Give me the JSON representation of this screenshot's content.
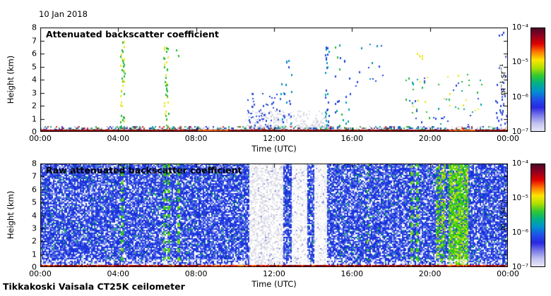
{
  "meta": {
    "date_label": "10 Jan 2018",
    "footer": "Tikkakoski Vaisala CT25K ceilometer"
  },
  "axes": {
    "x_label": "Time (UTC)",
    "y_label": "Height (km)",
    "x_tick_labels": [
      "00:00",
      "04:00",
      "08:00",
      "12:00",
      "16:00",
      "20:00",
      "00:00"
    ],
    "x_tick_hours": [
      0,
      4,
      8,
      12,
      16,
      20,
      24
    ],
    "y_tick_labels": [
      "8",
      "7",
      "6",
      "5",
      "4",
      "3",
      "2",
      "1",
      "0"
    ],
    "y_tick_km": [
      0,
      1,
      2,
      3,
      4,
      5,
      6,
      7,
      8
    ]
  },
  "colorbar": {
    "tick_labels": [
      "10⁻⁴",
      "10⁻⁵",
      "10⁻⁶",
      "10⁻⁷"
    ],
    "units": "m⁻¹ sr⁻¹",
    "scale_range": [
      "1e-7",
      "1e-4"
    ],
    "gradient": [
      "#4c0828",
      "#92001e",
      "#e00000",
      "#ff7800",
      "#ffe400",
      "#b0e000",
      "#30c830",
      "#00b088",
      "#0090d0",
      "#2050e8",
      "#2828e0",
      "#7878e8",
      "#c0c0f0",
      "#e8e8f8"
    ]
  },
  "chart_data": [
    {
      "type": "heatmap",
      "panel": "top",
      "title": "Attenuated backscatter coefficient",
      "xlabel": "Time (UTC)",
      "ylabel": "Height (km)",
      "x_range_hours": [
        0,
        24
      ],
      "y_range_km": [
        0,
        8
      ],
      "colorbar_range": [
        "1e-7",
        "1e-4"
      ],
      "background": "#ffffff",
      "surface_layer": {
        "time_hours": [
          0,
          24
        ],
        "height_km": [
          0,
          0.3
        ],
        "description": "continuous multicolour boundary-layer echo with dark red base line",
        "base_color": "#8c0000",
        "speck_colors": [
          "#2233cc",
          "#22a844",
          "#b8b8cc",
          "#cc2222",
          "#00a0a0",
          "#dcdce8"
        ],
        "orange_patch_hours": [
          [
            8.0,
            9.6
          ],
          [
            20.9,
            22.3
          ]
        ]
      },
      "cloud_obscured": {
        "time_hours": [
          10.5,
          14.7
        ],
        "height_km": [
          0,
          1.7
        ],
        "color": "#dfdfe9",
        "description": "light gray speckle (obscured/precip) with embedded blue dots"
      },
      "precip_streaks": [
        {
          "time_hours": [
            4.1,
            4.3
          ],
          "height_km": [
            0,
            7.0
          ],
          "colors": [
            "#22b830",
            "#e8e820"
          ],
          "density": 0.5
        },
        {
          "time_hours": [
            6.3,
            6.55
          ],
          "height_km": [
            0,
            6.7
          ],
          "colors": [
            "#22b830",
            "#e8e820"
          ],
          "density": 0.5
        },
        {
          "time_hours": [
            6.95,
            7.1
          ],
          "height_km": [
            5.8,
            6.5
          ],
          "colors": [
            "#22b830",
            "#e8e820"
          ],
          "density": 0.5
        },
        {
          "time_hours": [
            12.3,
            12.9
          ],
          "height_km": [
            0.5,
            5.5
          ],
          "colors": [
            "#2244dd",
            "#0090c0"
          ],
          "density": 0.35
        },
        {
          "time_hours": [
            14.6,
            14.8
          ],
          "height_km": [
            0,
            6.6
          ],
          "colors": [
            "#2244dd",
            "#00a0b0"
          ],
          "density": 0.5
        },
        {
          "time_hours": [
            15.0,
            15.9
          ],
          "height_km": [
            0,
            7.2
          ],
          "colors": [
            "#2244dd",
            "#00a0b0",
            "#22b830"
          ],
          "density": 0.45
        },
        {
          "time_hours": [
            23.3,
            24.0
          ],
          "height_km": [
            0,
            2.8
          ],
          "colors": [
            "#2244dd",
            "#5566e0"
          ],
          "density": 0.7
        },
        {
          "time_hours": [
            23.4,
            24.0
          ],
          "height_km": [
            2.8,
            7.7
          ],
          "colors": [
            "#2244dd",
            "#5566e0"
          ],
          "density": 0.25
        }
      ],
      "scattered_dots": [
        {
          "time_hours": [
            16.1,
            17.6
          ],
          "height_km": [
            3.5,
            7.0
          ],
          "colors": [
            "#0090c0",
            "#2244dd"
          ],
          "count": 14
        },
        {
          "time_hours": [
            18.7,
            22.7
          ],
          "height_km": [
            0.5,
            4.6
          ],
          "colors": [
            "#e8e820",
            "#22b830",
            "#00a0a0",
            "#2244dd"
          ],
          "count": 65
        },
        {
          "time_hours": [
            19.3,
            19.6
          ],
          "height_km": [
            5.4,
            6.4
          ],
          "colors": [
            "#e8e820",
            "#22b830"
          ],
          "count": 5
        },
        {
          "time_hours": [
            10.6,
            12.3
          ],
          "height_km": [
            0.2,
            3.0
          ],
          "colors": [
            "#2244dd",
            "#3050d8"
          ],
          "count": 60
        }
      ]
    },
    {
      "type": "heatmap",
      "panel": "bottom",
      "title": "Raw attenuated backscatter coefficient",
      "xlabel": "Time (UTC)",
      "ylabel": "Height (km)",
      "x_range_hours": [
        0,
        24
      ],
      "y_range_km": [
        0,
        8
      ],
      "colorbar_range": [
        "1e-7",
        "1e-4"
      ],
      "noise_background": {
        "description": "dense blue instrument-noise speckle over full panel",
        "colors": [
          "#1830d8",
          "#2a46e2",
          "#6078ea",
          "#a8b0f2",
          "#ffffff",
          "#18b060"
        ]
      },
      "low_level_pale_band": {
        "height_km": [
          0.18,
          0.7
        ],
        "description": "paler white speckle just above surface"
      },
      "surface_line": {
        "height_km": [
          0,
          0.18
        ],
        "colors": [
          "#a00000",
          "#d40000",
          "#ff5800"
        ],
        "bottom_line_color": "#500000",
        "orange_patch_hours": [
          [
            8.0,
            11.0
          ],
          [
            20.9,
            22.3
          ]
        ]
      },
      "gray_bands": [
        {
          "time_hours": [
            10.7,
            12.4
          ],
          "color": "#e2e2ec",
          "description": "data gap / attenuated, gray speckle"
        },
        {
          "time_hours": [
            12.85,
            13.7
          ],
          "color": "#f2f2f7",
          "description": "near-white gap"
        },
        {
          "time_hours": [
            14.0,
            14.7
          ],
          "color": "#eeeef4",
          "description": "near-white gap"
        }
      ],
      "green_streaks": [
        {
          "time_hours": [
            4.1,
            4.25
          ],
          "style": "dashed"
        },
        {
          "time_hours": [
            6.3,
            6.42
          ],
          "style": "dashed"
        },
        {
          "time_hours": [
            6.5,
            6.62
          ],
          "style": "dashed"
        },
        {
          "time_hours": [
            7.0,
            7.1
          ],
          "style": "dashed"
        },
        {
          "time_hours": [
            16.75,
            16.85
          ],
          "style": "faint"
        },
        {
          "time_hours": [
            18.95,
            19.1
          ],
          "style": "dashed"
        },
        {
          "time_hours": [
            19.25,
            19.45
          ],
          "style": "dashed"
        }
      ],
      "green_bands": [
        {
          "time_hours": [
            20.3,
            20.75
          ],
          "intensity": "medium"
        },
        {
          "time_hours": [
            20.9,
            21.95
          ],
          "intensity": "strong"
        }
      ]
    }
  ]
}
